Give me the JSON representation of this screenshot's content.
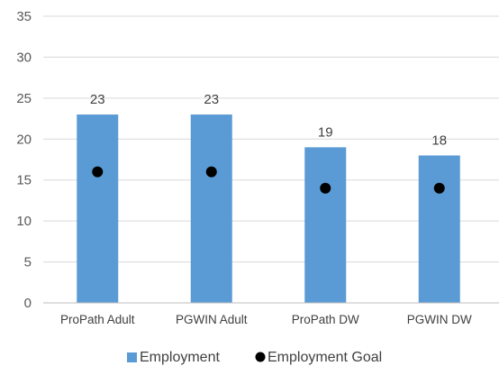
{
  "chart_data": {
    "type": "bar",
    "categories": [
      "ProPath Adult",
      "PGWIN Adult",
      "ProPath DW",
      "PGWIN DW"
    ],
    "series": [
      {
        "name": "Employment",
        "type": "bar",
        "values": [
          23,
          23,
          19,
          18
        ],
        "color": "#5B9BD5"
      },
      {
        "name": "Employment Goal",
        "type": "scatter",
        "values": [
          16,
          16,
          14,
          14
        ],
        "color": "#000000"
      }
    ],
    "data_labels": [
      "23",
      "23",
      "19",
      "18"
    ],
    "y_ticks": [
      "0",
      "5",
      "10",
      "15",
      "20",
      "25",
      "30",
      "35"
    ],
    "ylim": [
      0,
      35
    ],
    "grid": true,
    "legend_position": "bottom"
  }
}
